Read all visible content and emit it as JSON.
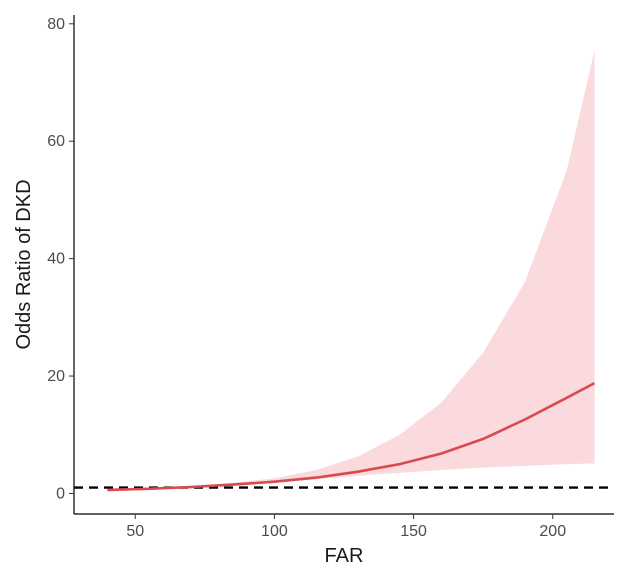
{
  "chart_data": {
    "type": "line",
    "xlabel": "FAR",
    "ylabel": "Odds Ratio of DKD",
    "xlim": [
      28,
      222
    ],
    "ylim": [
      -3.5,
      81.5
    ],
    "x_ticks": [
      50,
      100,
      150,
      200
    ],
    "y_ticks": [
      0,
      20,
      40,
      60,
      80
    ],
    "grid": false,
    "legend": "none",
    "reference_line": {
      "y": 1,
      "style": "dashed",
      "color": "#000000"
    },
    "series": [
      {
        "type": "line",
        "color": "#d94a4e",
        "x": [
          40,
          55,
          70,
          85,
          100,
          115,
          130,
          145,
          160,
          175,
          190,
          205,
          215
        ],
        "y": [
          0.6,
          0.8,
          1.1,
          1.5,
          2.0,
          2.7,
          3.7,
          5.0,
          6.8,
          9.3,
          12.6,
          16.3,
          18.8
        ]
      },
      {
        "type": "band",
        "color": "#fadadd",
        "x": [
          40,
          55,
          70,
          85,
          100,
          115,
          130,
          145,
          160,
          175,
          190,
          205,
          215
        ],
        "lower": [
          0.3,
          0.6,
          0.9,
          1.3,
          1.8,
          2.4,
          3.0,
          3.5,
          4.0,
          4.4,
          4.7,
          5.0,
          5.1
        ],
        "upper": [
          0.8,
          1.0,
          1.3,
          1.8,
          2.6,
          4.0,
          6.3,
          10.0,
          15.5,
          24.0,
          36.0,
          55.0,
          75.5
        ]
      }
    ]
  }
}
